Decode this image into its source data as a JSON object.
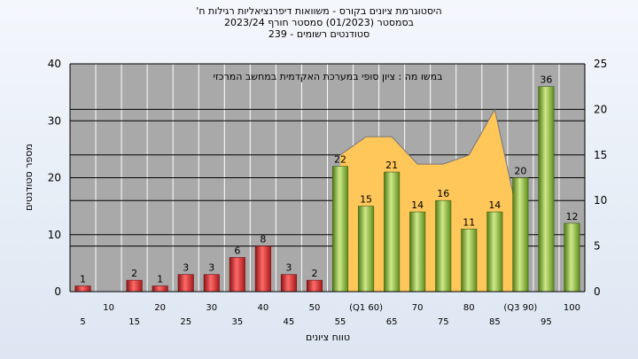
{
  "chart_data": {
    "type": "bar",
    "title_lines": [
      "'היסטוגרמת ציונים בקורס - משוואות דיפרנציאליות רגילות ח",
      "בסמסטר  (01/2023)  סמסטר חורף  2023/24",
      "סטודנטים רשומים - 239"
    ],
    "annotation": "במשו מה : ציון סופי במערכת האקדמית במחשב המרכזי",
    "xlabel": "טווח ציונים",
    "ylabel": "מספר סטודנטים",
    "ylim": [
      0,
      40
    ],
    "yticks": [
      0,
      10,
      20,
      30,
      40
    ],
    "y2lim": [
      0,
      25
    ],
    "y2ticks": [
      0,
      5,
      10,
      15,
      20,
      25
    ],
    "grid": true,
    "categories": [
      "5",
      "10",
      "15",
      "20",
      "25",
      "30",
      "35",
      "40",
      "45",
      "50",
      "55",
      "(Q1 60)",
      "65",
      "70",
      "75",
      "80",
      "85",
      "(Q3 90)",
      "95",
      "100"
    ],
    "values": [
      1,
      0,
      2,
      1,
      3,
      3,
      6,
      8,
      3,
      2,
      22,
      15,
      21,
      14,
      16,
      11,
      14,
      20,
      36,
      12
    ],
    "value_labels": [
      "1",
      "",
      "2",
      "1",
      "3",
      "3",
      "6",
      "8",
      "3",
      "2",
      "22",
      "15",
      "21",
      "14",
      "16",
      "11",
      "14",
      "20",
      "36",
      "12"
    ],
    "fail_threshold_category": "50",
    "area_series": {
      "axis": "right",
      "x_from_category": "55",
      "values": [
        15,
        17,
        17,
        14,
        14,
        15,
        20,
        7
      ]
    },
    "colors": {
      "fail_bar": "#d62b2b",
      "pass_bar": "#8cb83a",
      "area": "#ffc65a",
      "plot_bg": "#a9a9a9"
    }
  }
}
